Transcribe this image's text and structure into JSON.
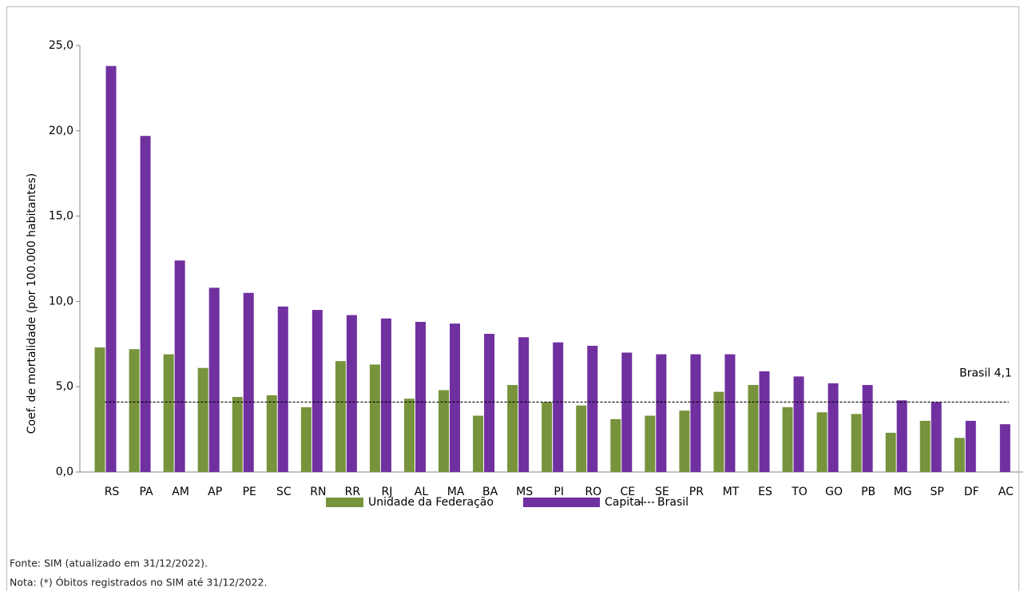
{
  "chart_data": {
    "type": "bar",
    "y_label": "Coef. de mortalidade (por 100.000 habitantes)",
    "categories": [
      "RS",
      "PA",
      "AM",
      "AP",
      "PE",
      "SC",
      "RN",
      "RR",
      "RJ",
      "AL",
      "MA",
      "BA",
      "MS",
      "PI",
      "RO",
      "CE",
      "SE",
      "PR",
      "MT",
      "ES",
      "TO",
      "GO",
      "PB",
      "MG",
      "SP",
      "DF",
      "AC"
    ],
    "series": [
      {
        "name": "Unidade da Federação",
        "color": "#77933c",
        "values": [
          7.3,
          7.2,
          6.9,
          6.1,
          4.4,
          4.5,
          3.8,
          6.5,
          6.3,
          4.3,
          4.8,
          3.3,
          5.1,
          4.1,
          3.9,
          3.1,
          3.3,
          3.6,
          4.7,
          5.1,
          3.8,
          3.5,
          3.4,
          2.3,
          3.0,
          2.0,
          null
        ]
      },
      {
        "name": "Capital",
        "color": "#7030a0",
        "values": [
          23.8,
          19.7,
          12.4,
          10.8,
          10.5,
          9.7,
          9.5,
          9.2,
          9.0,
          8.8,
          8.7,
          8.1,
          7.9,
          7.6,
          7.4,
          7.0,
          6.9,
          6.9,
          6.9,
          5.9,
          5.6,
          5.2,
          5.1,
          4.2,
          4.1,
          3.0,
          2.8
        ]
      }
    ],
    "reference_line": {
      "name": "Brasil",
      "value": 4.1,
      "label": "Brasil 4,1",
      "color": "#000000"
    },
    "ylim": [
      0,
      25
    ],
    "yticks": [
      {
        "value": 0,
        "label": "0,0"
      },
      {
        "value": 5,
        "label": "5,0"
      },
      {
        "value": 10,
        "label": "10,0"
      },
      {
        "value": 15,
        "label": "15,0"
      },
      {
        "value": 20,
        "label": "20,0"
      },
      {
        "value": 25,
        "label": "25,0"
      }
    ],
    "grid": false,
    "legend": "bottom",
    "notes": [
      "Fonte: SIM (atualizado em 31/12/2022).",
      "Nota: (*) Óbitos registrados no SIM até 31/12/2022."
    ]
  }
}
